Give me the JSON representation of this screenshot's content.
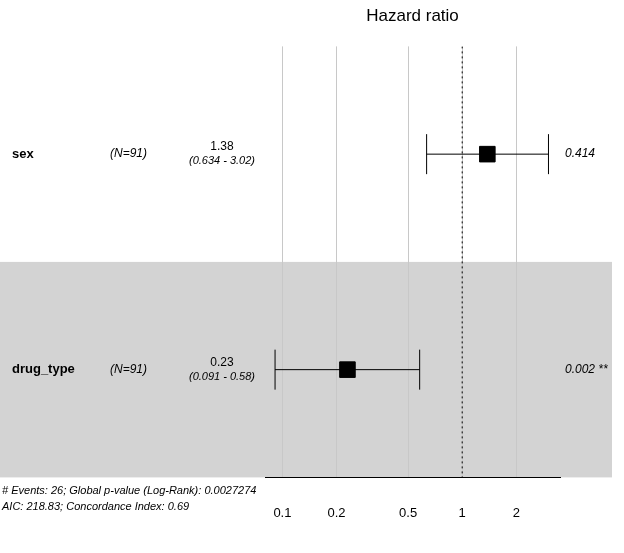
{
  "chart_data": {
    "type": "forest",
    "title": "Hazard ratio",
    "categories": [
      "sex",
      "drug_type"
    ],
    "n_labels": [
      "(N=91)",
      "(N=91)"
    ],
    "values": [
      1.38,
      0.23
    ],
    "ci_lower": [
      0.634,
      0.091
    ],
    "ci_upper": [
      3.02,
      0.58
    ],
    "ci_labels": [
      "(0.634 - 3.02)",
      "(0.091 - 0.58)"
    ],
    "p_labels": [
      "0.414",
      "0.002 **"
    ],
    "reference_line": 1,
    "footer": [
      "# Events: 26; Global p-value (Log-Rank): 0.0027274",
      "AIC: 218.83; Concordance Index: 0.69"
    ],
    "log": "x",
    "xlim": [
      0.08,
      3.5
    ],
    "xticks": [
      0.1,
      0.2,
      0.5,
      1,
      2
    ],
    "grid": true,
    "color": "#000000",
    "marker": "square"
  }
}
